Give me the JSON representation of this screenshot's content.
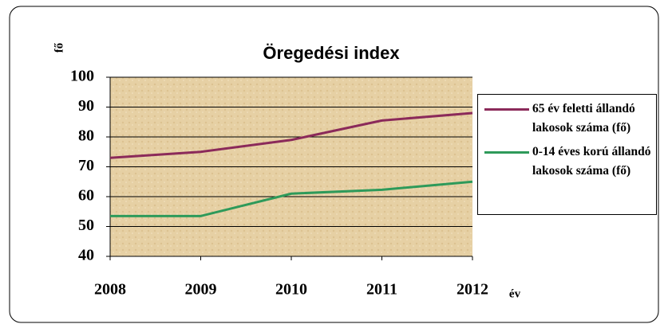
{
  "chart_data": {
    "type": "line",
    "title": "Öregedési index",
    "ylabel": "fő",
    "xlabel": "év",
    "x": [
      2008,
      2009,
      2010,
      2011,
      2012
    ],
    "series": [
      {
        "name": "65 év feletti állandó lakosok száma (fő)",
        "color": "#8b2a5a",
        "values": [
          73,
          75,
          79,
          85.5,
          88
        ]
      },
      {
        "name": "0-14 éves korú állandó lakosok száma (fő)",
        "color": "#2e9a5a",
        "values": [
          53.5,
          53.5,
          61,
          62.3,
          65
        ]
      }
    ],
    "xlim": [
      2008,
      2012
    ],
    "xticks": [
      2008,
      2009,
      2010,
      2011,
      2012
    ],
    "ylim": [
      40,
      100
    ],
    "yticks": [
      40,
      50,
      60,
      70,
      80,
      90,
      100
    ],
    "grid": true,
    "legend": "right"
  }
}
